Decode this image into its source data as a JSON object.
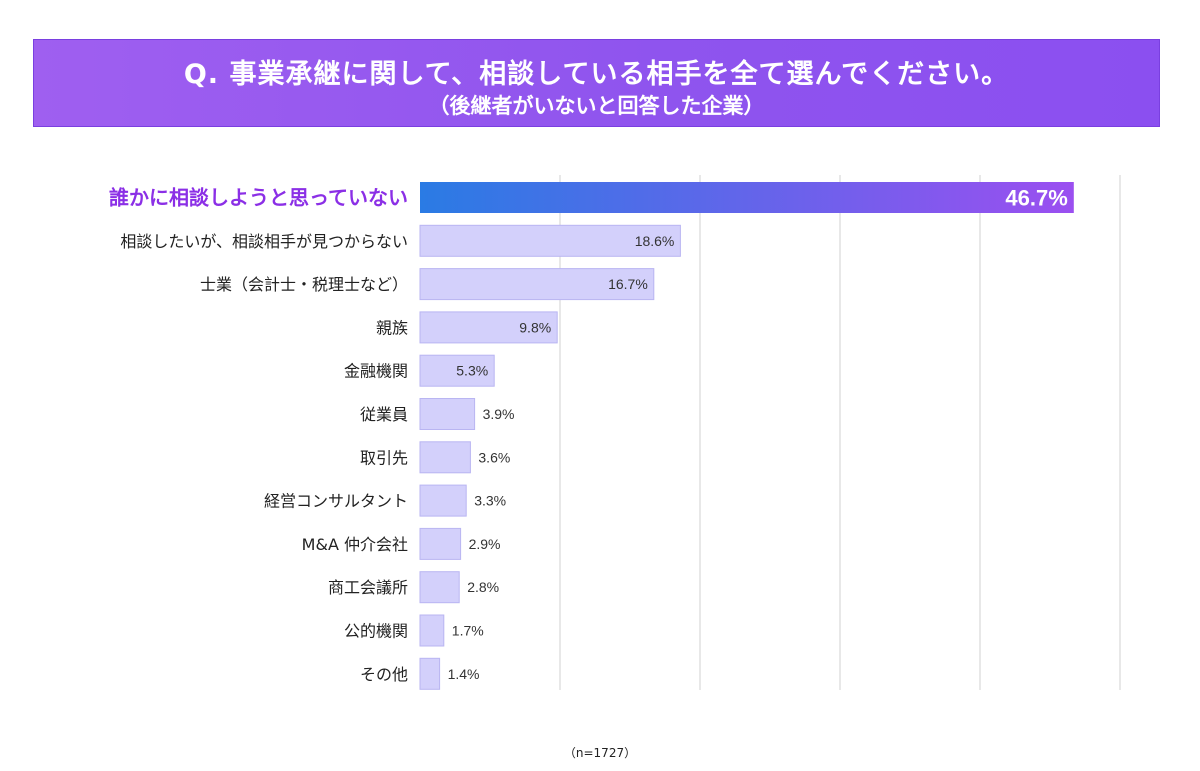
{
  "header": {
    "title": "Q. 事業承継に関して、相談している相手を全て選んでください。",
    "subtitle": "（後継者がいないと回答した企業）"
  },
  "footer": {
    "n_note": "（n=1727）"
  },
  "colors": {
    "highlight_start": "#2a7be4",
    "highlight_end": "#9b4ff0",
    "highlight_label": "#8b2fe6",
    "bar": "#d3d0fb",
    "bar_border": "#b9b5f2",
    "grid": "#d0d0d0"
  },
  "chart_data": {
    "type": "bar",
    "orientation": "horizontal",
    "title": "Q. 事業承継に関して、相談している相手を全て選んでください。",
    "subtitle": "（後継者がいないと回答した企業）",
    "categories": [
      "誰かに相談しようと思っていない",
      "相談したいが、相談相手が見つからない",
      "士業（会計士・税理士など）",
      "親族",
      "金融機関",
      "従業員",
      "取引先",
      "経営コンサルタント",
      "M&A 仲介会社",
      "商工会議所",
      "公的機関",
      "その他"
    ],
    "values": [
      46.7,
      18.6,
      16.7,
      9.8,
      5.3,
      3.9,
      3.6,
      3.3,
      2.9,
      2.8,
      1.7,
      1.4
    ],
    "value_labels": [
      "46.7%",
      "18.6%",
      "16.7%",
      "9.8%",
      "5.3%",
      "3.9%",
      "3.6%",
      "3.3%",
      "2.9%",
      "2.8%",
      "1.7%",
      "1.4%"
    ],
    "highlight_index": 0,
    "xlim": [
      0,
      50
    ],
    "grid_values": [
      10,
      20,
      30,
      40,
      50
    ],
    "xlabel": "",
    "ylabel": ""
  }
}
